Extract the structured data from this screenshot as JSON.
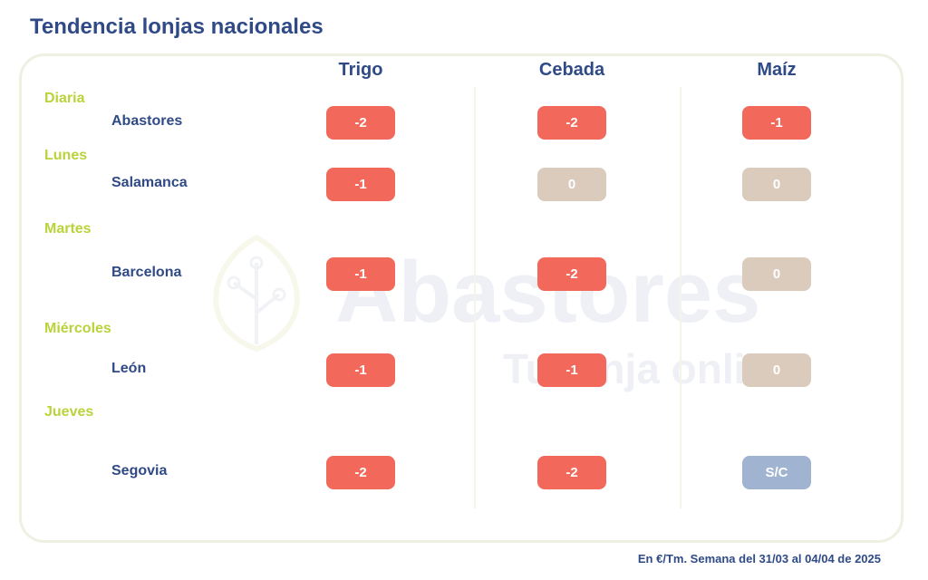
{
  "title": "Tendencia lonjas nacionales",
  "footer_note": "En €/Tm. Semana del 31/03 al 04/04 de 2025",
  "watermark": {
    "brand": "Abastores",
    "tagline": "Tu lonja online"
  },
  "chart_data": {
    "type": "table",
    "columns": [
      "Trigo",
      "Cebada",
      "Maíz"
    ],
    "groups": [
      {
        "day": "Diaria",
        "rows": [
          {
            "market": "Abastores",
            "values": [
              "-2",
              "-2",
              "-1"
            ]
          }
        ]
      },
      {
        "day": "Lunes",
        "rows": [
          {
            "market": "Salamanca",
            "values": [
              "-1",
              "0",
              "0"
            ]
          }
        ]
      },
      {
        "day": "Martes",
        "rows": [
          {
            "market": "Barcelona",
            "values": [
              "-1",
              "-2",
              "0"
            ]
          }
        ]
      },
      {
        "day": "Miércoles",
        "rows": [
          {
            "market": "León",
            "values": [
              "-1",
              "-1",
              "0"
            ]
          }
        ]
      },
      {
        "day": "Jueves",
        "rows": [
          {
            "market": "Segovia",
            "values": [
              "-2",
              "-2",
              "S/C"
            ]
          }
        ]
      }
    ]
  },
  "colors": {
    "negative": "#f2695c",
    "zero": "#dbcbbd",
    "no_quote": "#a0b4d2",
    "title": "#2f4a86",
    "day_label": "#b9d33a"
  }
}
